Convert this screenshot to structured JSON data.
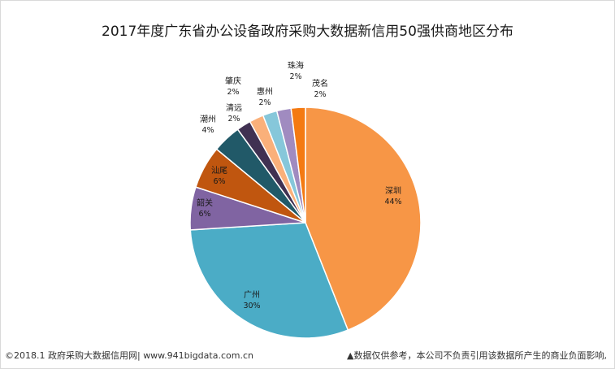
{
  "chart_data": {
    "type": "pie",
    "title": "2017年度广东省办公设备政府采购大数据新信用50强供商地区分布",
    "slices": [
      {
        "label": "深圳",
        "value": 44,
        "pct_label": "44%",
        "color": "#F79646"
      },
      {
        "label": "广州",
        "value": 30,
        "pct_label": "30%",
        "color": "#4BACC6"
      },
      {
        "label": "韶关",
        "value": 6,
        "pct_label": "6%",
        "color": "#8064A2"
      },
      {
        "label": "汕尾",
        "value": 6,
        "pct_label": "6%",
        "color": "#C0560F"
      },
      {
        "label": "潮州",
        "value": 4,
        "pct_label": "4%",
        "color": "#215968"
      },
      {
        "label": "清远",
        "value": 2,
        "pct_label": "2%",
        "color": "#403152"
      },
      {
        "label": "肇庆",
        "value": 2,
        "pct_label": "2%",
        "color": "#FAB07A"
      },
      {
        "label": "惠州",
        "value": 2,
        "pct_label": "2%",
        "color": "#86C7DA"
      },
      {
        "label": "珠海",
        "value": 2,
        "pct_label": "2%",
        "color": "#A08BC0"
      },
      {
        "label": "茂名",
        "value": 2,
        "pct_label": "2%",
        "color": "#F47A12"
      }
    ]
  },
  "footer": {
    "left": "©2018.1 政府采购大数据信用网| www.941bigdata.com.cn",
    "right": "▲数据仅供参考，本公司不负责引用该数据所产生的商业负面影响,"
  }
}
